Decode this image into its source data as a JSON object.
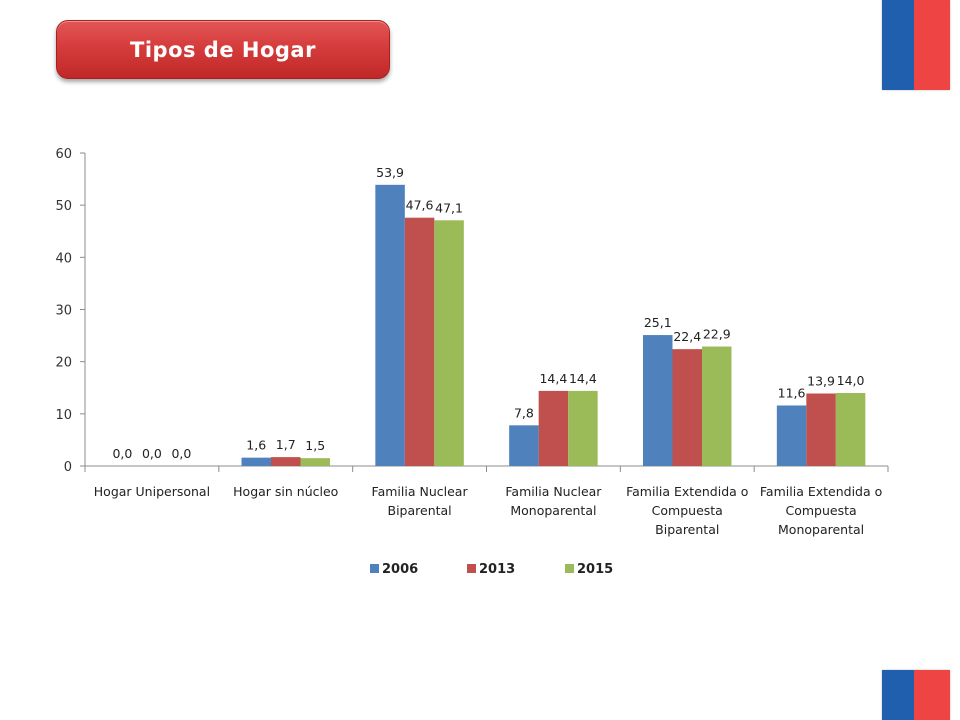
{
  "header": {
    "title": "Tipos de Hogar"
  },
  "colors": {
    "title_bg": "#d63c3c",
    "flag_blue": "#1f5fae",
    "flag_red": "#ef4444"
  },
  "chart_data": {
    "type": "bar",
    "title": "",
    "xlabel": "",
    "ylabel": "",
    "ylim": [
      0,
      60
    ],
    "yticks": [
      0,
      10,
      20,
      30,
      40,
      50,
      60
    ],
    "grid": false,
    "legend": "bottom",
    "categories": [
      "Hogar Unipersonal",
      "Hogar sin núcleo",
      "Familia Nuclear Biparental",
      "Familia Nuclear Monoparental",
      "Familia Extendida o Compuesta Biparental",
      "Familia Extendida o Compuesta Monoparental"
    ],
    "category_lines": [
      [
        "Hogar Unipersonal"
      ],
      [
        "Hogar sin núcleo"
      ],
      [
        "Familia Nuclear",
        "Biparental"
      ],
      [
        "Familia Nuclear",
        "Monoparental"
      ],
      [
        "Familia Extendida o",
        "Compuesta",
        "Biparental"
      ],
      [
        "Familia Extendida o",
        "Compuesta",
        "Monoparental"
      ]
    ],
    "series": [
      {
        "name": "2006",
        "color": "#4f81bd",
        "values": [
          0.0,
          1.6,
          53.9,
          7.8,
          25.1,
          11.6
        ],
        "labels": [
          "0,0",
          "1,6",
          "53,9",
          "7,8",
          "25,1",
          "11,6"
        ]
      },
      {
        "name": "2013",
        "color": "#c0504d",
        "values": [
          0.0,
          1.7,
          47.6,
          14.4,
          22.4,
          13.9
        ],
        "labels": [
          "0,0",
          "1,7",
          "47,6",
          "14,4",
          "22,4",
          "13,9"
        ]
      },
      {
        "name": "2015",
        "color": "#9bbb59",
        "values": [
          0.0,
          1.5,
          47.1,
          14.4,
          22.9,
          14.0
        ],
        "labels": [
          "0,0",
          "1,5",
          "47,1",
          "14,4",
          "22,9",
          "14,0"
        ]
      }
    ]
  }
}
